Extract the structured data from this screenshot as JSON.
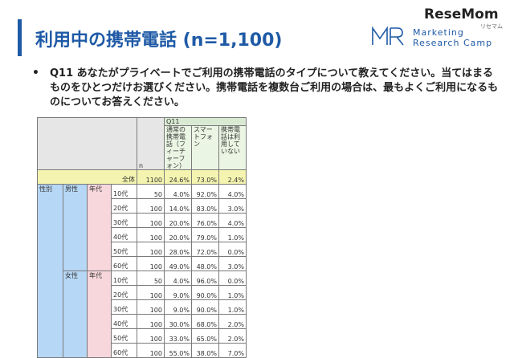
{
  "header": {
    "title": "利用中の携帯電話 (n=1,100)",
    "brand_line1": "Marketing",
    "brand_line2": "Research Camp",
    "watermark": "ReseMom",
    "watermark_sub": "リセマム"
  },
  "question": {
    "bullet": "•",
    "text": "Q11 あなたがプライベートでご利用の携帯電話のタイプについて教えてください。当てはまるものをひとつだけお選びください。携帯電話を複数台ご利用の場合は、最もよくご利用になるものについてお答えください。"
  },
  "table": {
    "q_label": "Q11",
    "n_label": "n",
    "col_feature": "通常の携帯電話（フィーチャーフォン）",
    "col_smart": "スマートフォン",
    "col_none": "携帯電話は利用していない",
    "total": {
      "label": "全体",
      "n": "1100",
      "feature": "24.6%",
      "smart": "73.0%",
      "none": "2.4%"
    },
    "dim_label": "性別",
    "age_label": "年代",
    "groups": [
      {
        "name": "男性",
        "age_label": "年代",
        "rows": [
          {
            "age": "10代",
            "n": "50",
            "feature": "4.0%",
            "smart": "92.0%",
            "none": "4.0%"
          },
          {
            "age": "20代",
            "n": "100",
            "feature": "14.0%",
            "smart": "83.0%",
            "none": "3.0%"
          },
          {
            "age": "30代",
            "n": "100",
            "feature": "20.0%",
            "smart": "76.0%",
            "none": "4.0%"
          },
          {
            "age": "40代",
            "n": "100",
            "feature": "20.0%",
            "smart": "79.0%",
            "none": "1.0%"
          },
          {
            "age": "50代",
            "n": "100",
            "feature": "28.0%",
            "smart": "72.0%",
            "none": "0.0%"
          },
          {
            "age": "60代",
            "n": "100",
            "feature": "49.0%",
            "smart": "48.0%",
            "none": "3.0%"
          }
        ]
      },
      {
        "name": "女性",
        "age_label": "年代",
        "rows": [
          {
            "age": "10代",
            "n": "50",
            "feature": "4.0%",
            "smart": "96.0%",
            "none": "0.0%"
          },
          {
            "age": "20代",
            "n": "100",
            "feature": "9.0%",
            "smart": "90.0%",
            "none": "1.0%"
          },
          {
            "age": "30代",
            "n": "100",
            "feature": "9.0%",
            "smart": "90.0%",
            "none": "1.0%"
          },
          {
            "age": "40代",
            "n": "100",
            "feature": "30.0%",
            "smart": "68.0%",
            "none": "2.0%"
          },
          {
            "age": "50代",
            "n": "100",
            "feature": "33.0%",
            "smart": "65.0%",
            "none": "2.0%"
          },
          {
            "age": "60代",
            "n": "100",
            "feature": "55.0%",
            "smart": "38.0%",
            "none": "7.0%"
          }
        ]
      }
    ]
  }
}
